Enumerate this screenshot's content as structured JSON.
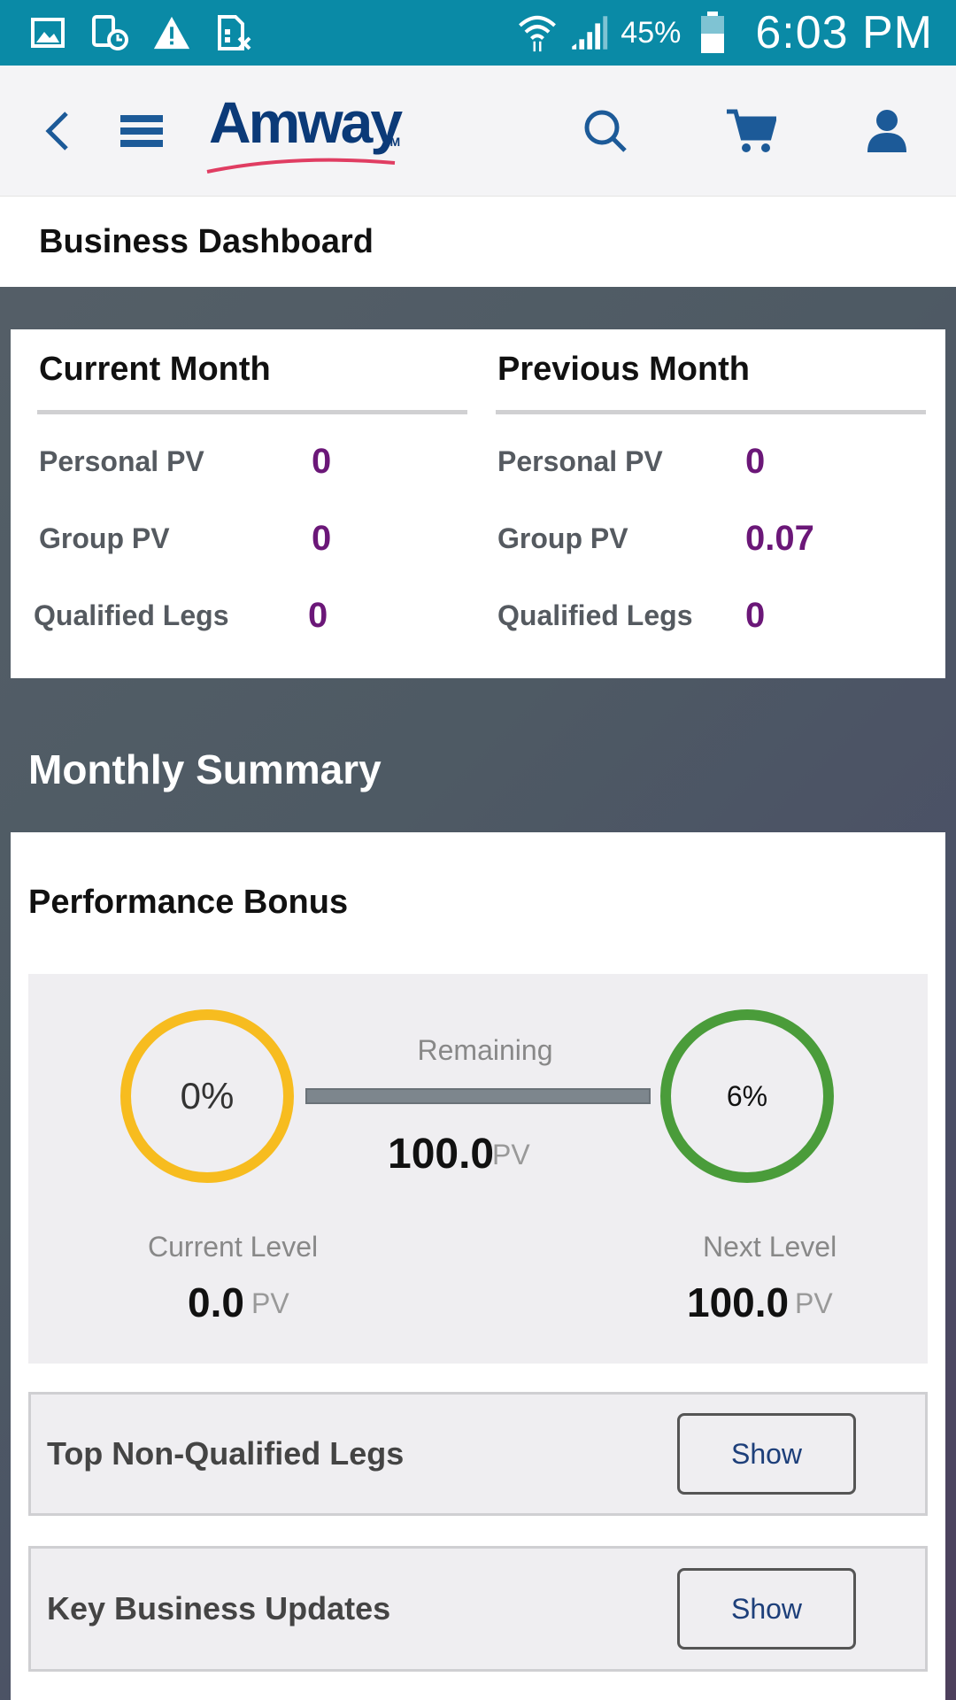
{
  "status_bar": {
    "left_icons": [
      "image-icon",
      "device-clock-icon",
      "warning-icon",
      "file-x-icon"
    ],
    "battery": "45%",
    "time": "6:03 PM"
  },
  "header": {
    "logo_text": "Amway",
    "logo_tm": "TM"
  },
  "page": {
    "title": "Business Dashboard"
  },
  "months": {
    "current": {
      "title": "Current Month",
      "rows": [
        {
          "label": "Personal PV",
          "value": "0"
        },
        {
          "label": "Group PV",
          "value": "0"
        },
        {
          "label": "Qualified Legs",
          "value": "0"
        }
      ]
    },
    "previous": {
      "title": "Previous Month",
      "rows": [
        {
          "label": "Personal PV",
          "value": "0"
        },
        {
          "label": "Group PV",
          "value": "0.07"
        },
        {
          "label": "Qualified Legs",
          "value": "0"
        }
      ]
    }
  },
  "summary": {
    "title": "Monthly Summary"
  },
  "performance_bonus": {
    "title": "Performance Bonus",
    "current_ring": "0%",
    "next_ring": "6%",
    "remaining_label": "Remaining",
    "remaining_value": "100.0",
    "remaining_unit": "PV",
    "progress_fraction": 0,
    "current_level_label": "Current Level",
    "current_level_value": "0.0",
    "current_level_unit": "PV",
    "next_level_label": "Next Level",
    "next_level_value": "100.0",
    "next_level_unit": "PV"
  },
  "sections": {
    "legs_label": "Top Non-Qualified Legs",
    "updates_label": "Key Business Updates",
    "show_label": "Show"
  },
  "colors": {
    "status_bar": "#0a8aa6",
    "value_purple": "#6b1778",
    "ring_current": "#f7bc1f",
    "ring_next": "#4a9c3a",
    "brand_blue": "#0b3a78"
  }
}
